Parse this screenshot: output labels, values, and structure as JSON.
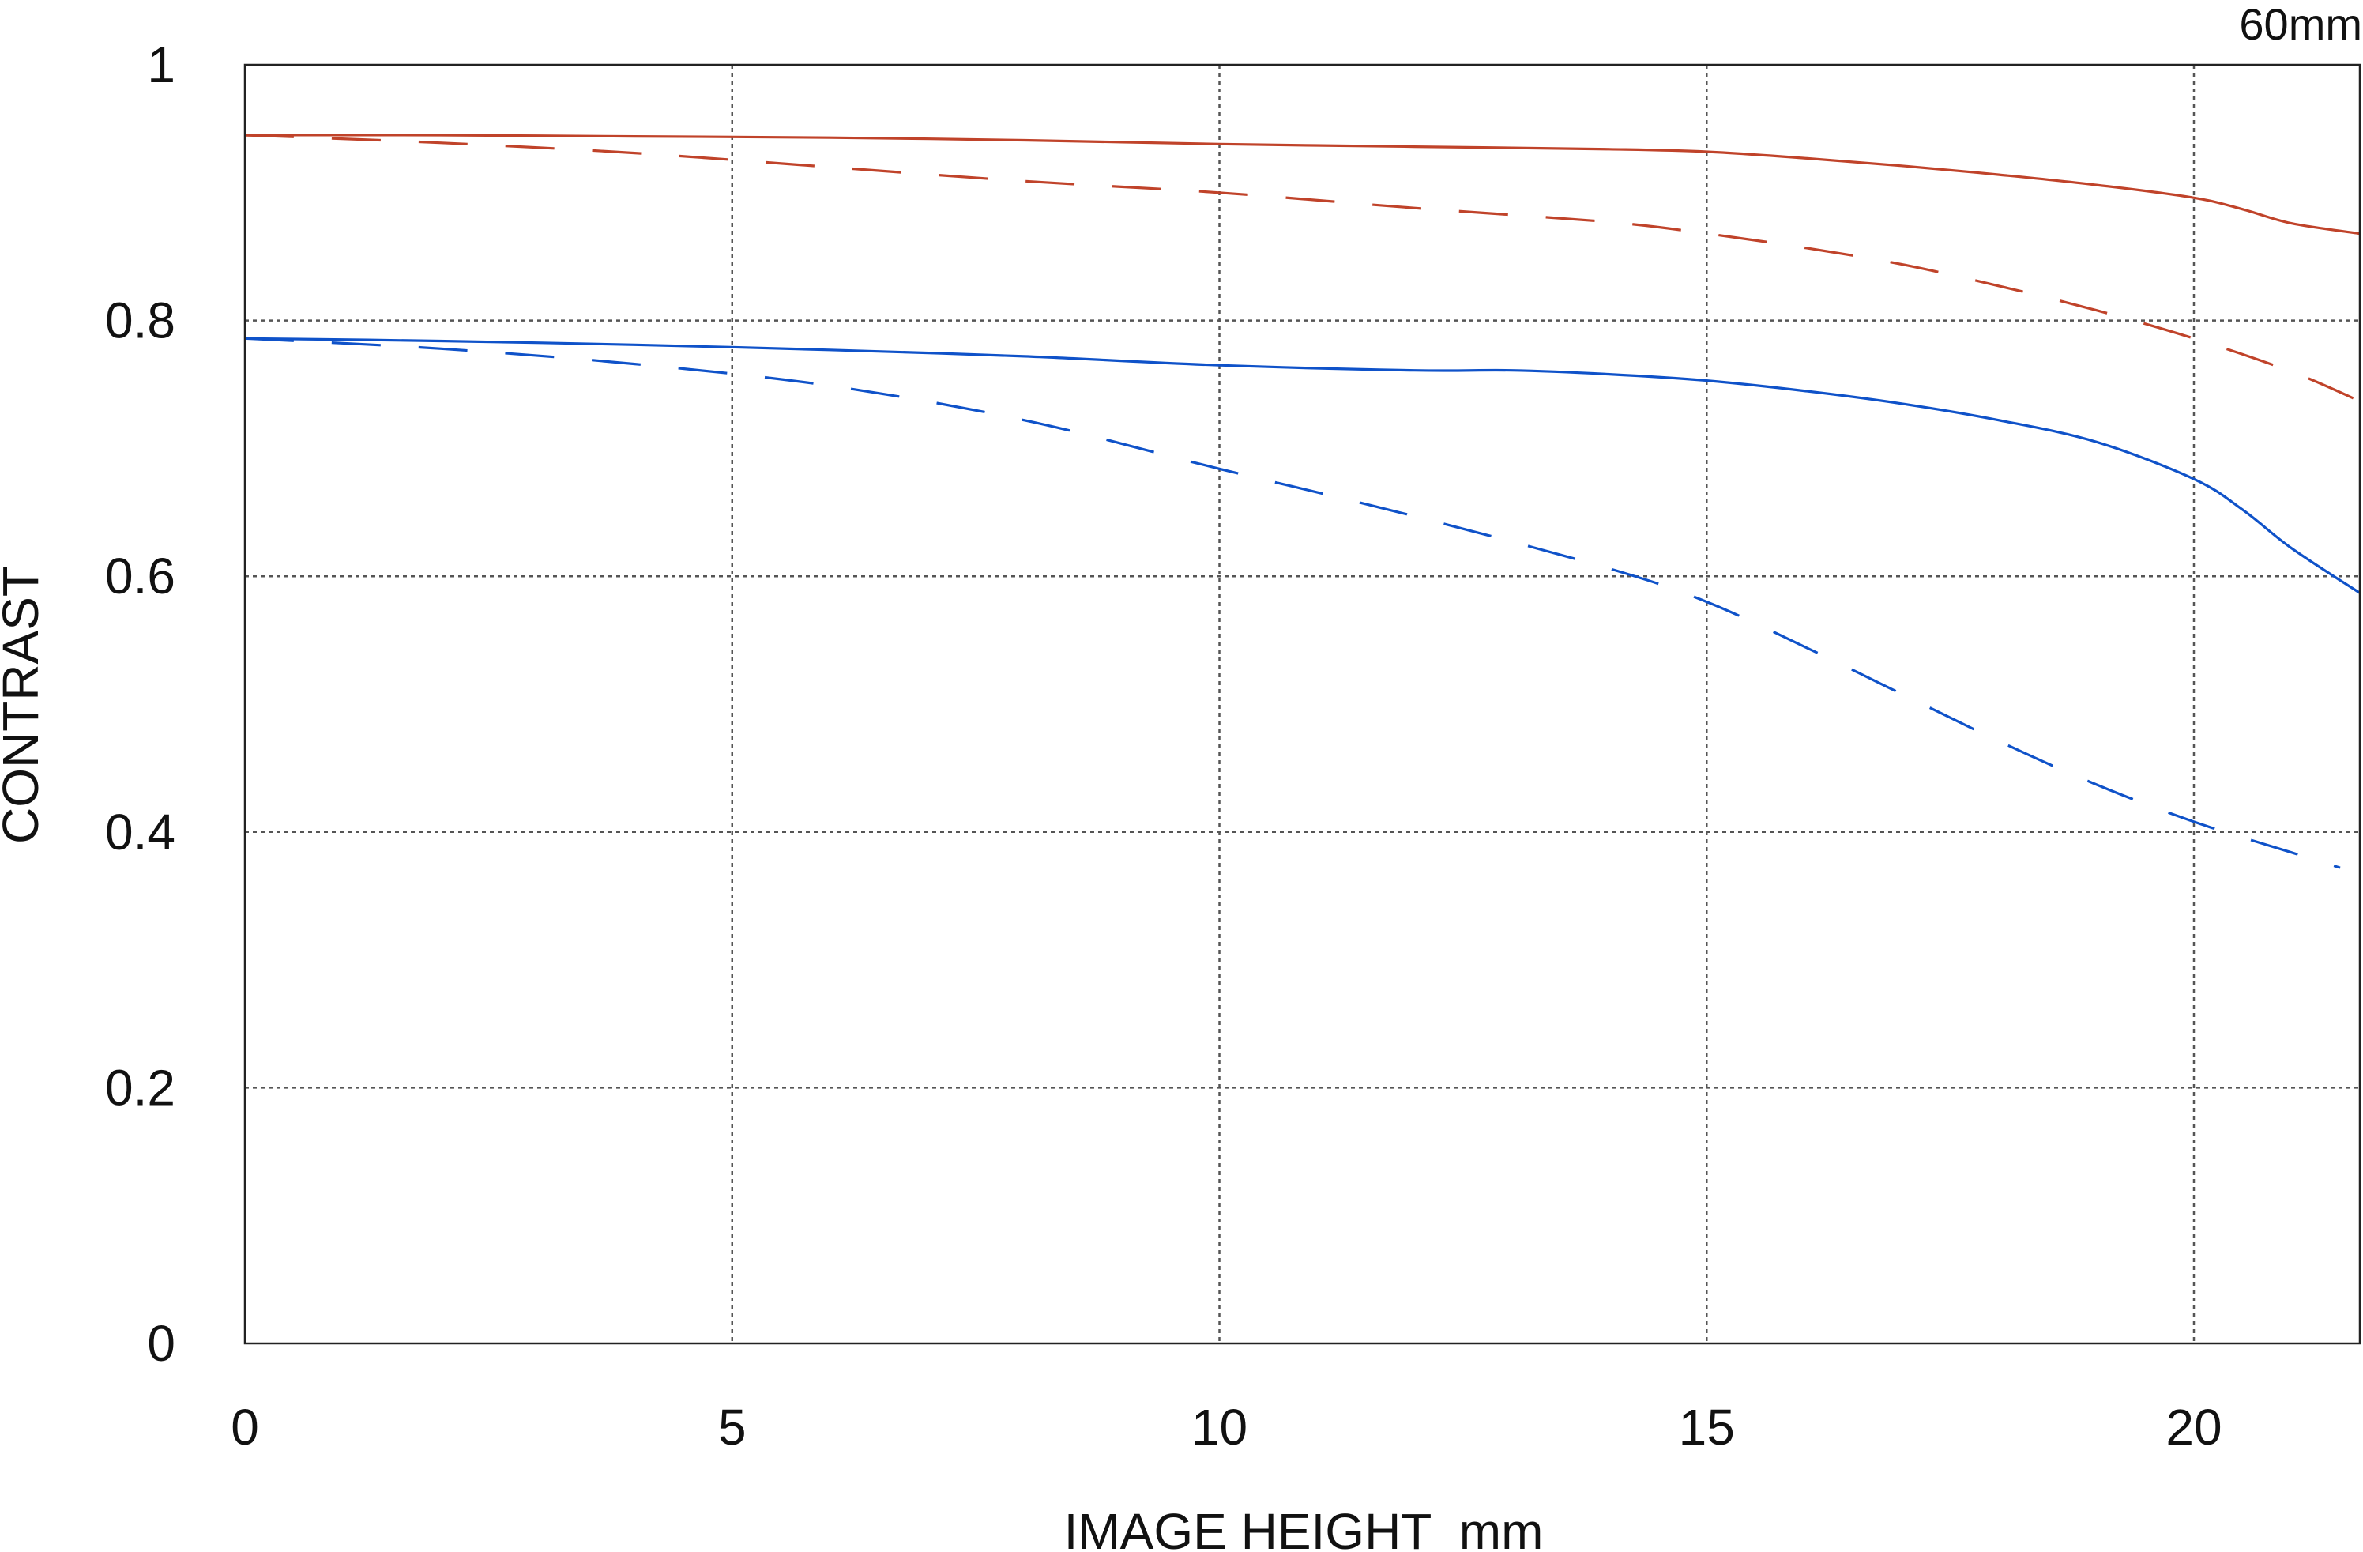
{
  "corner_label": "60mm",
  "chart_data": {
    "type": "line",
    "title": "",
    "xlabel": "IMAGE HEIGHT  mm",
    "ylabel": "CONTRAST",
    "xlim": [
      0,
      21.7
    ],
    "ylim": [
      0,
      1
    ],
    "xticks": [
      0,
      5,
      10,
      15,
      20
    ],
    "yticks": [
      0,
      0.2,
      0.4,
      0.6,
      0.8,
      1
    ],
    "xtick_labels": [
      "0",
      "5",
      "10",
      "15",
      "20"
    ],
    "ytick_labels": [
      "0",
      "0.2",
      "0.4",
      "0.6",
      "0.8",
      "1"
    ],
    "grid": true,
    "legend": "none",
    "series": [
      {
        "color": "#c0432a",
        "style": "solid",
        "points": [
          [
            0,
            0.945
          ],
          [
            2,
            0.945
          ],
          [
            4,
            0.944
          ],
          [
            6,
            0.943
          ],
          [
            8,
            0.941
          ],
          [
            10,
            0.938
          ],
          [
            12,
            0.936
          ],
          [
            14,
            0.934
          ],
          [
            15,
            0.932
          ],
          [
            16,
            0.927
          ],
          [
            17,
            0.921
          ],
          [
            18,
            0.914
          ],
          [
            19,
            0.906
          ],
          [
            20,
            0.896
          ],
          [
            20.5,
            0.887
          ],
          [
            21,
            0.876
          ],
          [
            21.7,
            0.868
          ]
        ]
      },
      {
        "color": "#c0432a",
        "style": "dashed",
        "points": [
          [
            0,
            0.945
          ],
          [
            2,
            0.939
          ],
          [
            4,
            0.931
          ],
          [
            6,
            0.92
          ],
          [
            8,
            0.909
          ],
          [
            10,
            0.9
          ],
          [
            12,
            0.888
          ],
          [
            14,
            0.877
          ],
          [
            15,
            0.868
          ],
          [
            16,
            0.857
          ],
          [
            17,
            0.844
          ],
          [
            18,
            0.827
          ],
          [
            19,
            0.808
          ],
          [
            20,
            0.786
          ],
          [
            21,
            0.76
          ],
          [
            21.7,
            0.737
          ]
        ]
      },
      {
        "color": "#0f52c9",
        "style": "solid",
        "points": [
          [
            0,
            0.786
          ],
          [
            2,
            0.784
          ],
          [
            4,
            0.781
          ],
          [
            6,
            0.777
          ],
          [
            8,
            0.772
          ],
          [
            10,
            0.765
          ],
          [
            12,
            0.761
          ],
          [
            13,
            0.761
          ],
          [
            14,
            0.758
          ],
          [
            15,
            0.753
          ],
          [
            16,
            0.745
          ],
          [
            17,
            0.735
          ],
          [
            18,
            0.722
          ],
          [
            19,
            0.705
          ],
          [
            20,
            0.676
          ],
          [
            20.5,
            0.652
          ],
          [
            21,
            0.622
          ],
          [
            21.7,
            0.587
          ]
        ]
      },
      {
        "color": "#0f52c9",
        "style": "dashed",
        "points": [
          [
            0,
            0.786
          ],
          [
            2,
            0.778
          ],
          [
            4,
            0.766
          ],
          [
            6,
            0.749
          ],
          [
            8,
            0.722
          ],
          [
            10,
            0.684
          ],
          [
            12,
            0.647
          ],
          [
            14,
            0.606
          ],
          [
            15,
            0.58
          ],
          [
            16,
            0.545
          ],
          [
            17,
            0.508
          ],
          [
            18,
            0.471
          ],
          [
            19,
            0.437
          ],
          [
            20,
            0.408
          ],
          [
            21,
            0.384
          ],
          [
            21.5,
            0.372
          ]
        ]
      }
    ]
  }
}
